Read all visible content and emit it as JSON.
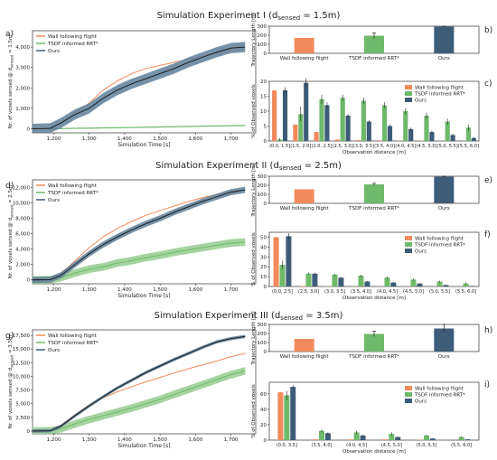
{
  "colors": {
    "wall": "#F28A5B",
    "tsdf": "#6EB96A",
    "ours": "#3D5C78",
    "ours_band": "#5E7F99",
    "tsdf_band": "#95CD8E"
  },
  "experiments": [
    {
      "title": "Simulation Experiment I (d",
      "title_sub": "sensed",
      "title_tail": " = 1.5m)",
      "panel_labels": [
        "a)",
        "b)",
        "c)"
      ],
      "ylabel_prefix": "Nr. of voxels sensed @ d",
      "ylabel_sub": "sensed",
      "ylabel_tail": " = 1.5m"
    },
    {
      "title": "Simulation Experiment II (d",
      "title_sub": "sensed",
      "title_tail": " = 2.5m)",
      "panel_labels": [
        "d)",
        "e)",
        "f)"
      ],
      "ylabel_prefix": "Nr. of voxels sensed @ d",
      "ylabel_sub": "sensed",
      "ylabel_tail": " = 2.5m"
    },
    {
      "title": "Simulation Experiment III (d",
      "title_sub": "sensed",
      "title_tail": " = 3.5m)",
      "panel_labels": [
        "g)",
        "h)",
        "i)"
      ],
      "ylabel_prefix": "Nr. of voxels sensed @ d",
      "ylabel_sub": "sensed",
      "ylabel_tail": " = 3.5m"
    }
  ],
  "legend": [
    "Wall following flight",
    "TSDF informed RRT*",
    "Ours"
  ],
  "chart_data": [
    {
      "id": "a",
      "type": "line",
      "xlabel": "Simulation Time [s]",
      "ylabel": "Nr. of voxels sensed @ d sensed = 1.5m",
      "xlim": [
        1140,
        1770
      ],
      "ylim": [
        -200,
        4800
      ],
      "xticks": [
        1200,
        1300,
        1400,
        1500,
        1600,
        1700
      ],
      "xtick_labels": [
        "1,200",
        "1,300",
        "1,400",
        "1,500",
        "1,600",
        "1,700"
      ],
      "yticks": [
        0,
        1000,
        2000,
        3000,
        4000
      ],
      "ytick_labels": [
        "0",
        "1,000",
        "2,000",
        "3,000",
        "4,000"
      ],
      "legend_loc": "top-left",
      "series": [
        {
          "name": "Wall following flight",
          "x": [
            1140,
            1190,
            1220,
            1260,
            1300,
            1340,
            1380,
            1420,
            1460,
            1500,
            1540,
            1580,
            1620,
            1660,
            1700,
            1740
          ],
          "y": [
            0,
            20,
            300,
            800,
            1250,
            1900,
            2350,
            2700,
            2950,
            3100,
            3250,
            3400,
            3550,
            3700,
            3850,
            3900
          ]
        },
        {
          "name": "TSDF informed RRT*",
          "x": [
            1140,
            1200,
            1300,
            1400,
            1500,
            1600,
            1700,
            1740
          ],
          "y": [
            0,
            5,
            30,
            60,
            90,
            120,
            150,
            160
          ],
          "band": 30
        },
        {
          "name": "Ours",
          "x": [
            1140,
            1190,
            1220,
            1260,
            1300,
            1340,
            1380,
            1420,
            1460,
            1500,
            1540,
            1580,
            1620,
            1660,
            1700,
            1740
          ],
          "y": [
            0,
            20,
            280,
            700,
            1000,
            1500,
            1900,
            2200,
            2450,
            2700,
            2950,
            3250,
            3500,
            3750,
            3950,
            4000
          ],
          "band": 250
        }
      ]
    },
    {
      "id": "b",
      "type": "bar",
      "ylabel": "Trajectory Length [m]",
      "ylim": [
        0,
        300
      ],
      "yticks": [
        0,
        100,
        200,
        300
      ],
      "categories": [
        "Wall following flight",
        "TSDF informed RRT*",
        "Ours"
      ],
      "values": [
        170,
        195,
        295
      ],
      "errors": [
        0,
        30,
        5
      ]
    },
    {
      "id": "c",
      "type": "bar",
      "ylabel": "% of Observed voxels",
      "xlabel": "Observation distance [m]",
      "ylim": [
        0,
        20
      ],
      "yticks": [
        0,
        5,
        10,
        15,
        20
      ],
      "categories": [
        "(0.0, 1.5]",
        "(1.5, 2.0]",
        "(2.0, 2.5]",
        "(2.5, 3.0]",
        "(3.0, 3.5]",
        "(3.5, 4.0]",
        "(4.0, 4.5]",
        "(4.5, 5.0]",
        "(5.0, 5.5]",
        "(5.5, 6.0]"
      ],
      "series": [
        {
          "name": "Wall following flight",
          "values": [
            17,
            5.5,
            3,
            0.5,
            0.3,
            0.2,
            0.1,
            0.1,
            0,
            0
          ],
          "errors": [
            0,
            0,
            0,
            0,
            0,
            0,
            0,
            0,
            0,
            0
          ]
        },
        {
          "name": "TSDF informed RRT*",
          "values": [
            0.5,
            9,
            14,
            14.5,
            13.5,
            12,
            10,
            8.5,
            6.5,
            4.5
          ],
          "errors": [
            0.5,
            2.5,
            1.5,
            1,
            1,
            1,
            1,
            1,
            1,
            1
          ]
        },
        {
          "name": "Ours",
          "values": [
            17,
            19.5,
            12,
            8.5,
            6.5,
            5,
            4,
            3,
            2,
            1
          ],
          "errors": [
            1,
            1.5,
            1,
            0.5,
            0.5,
            0.5,
            0.5,
            0.5,
            0.5,
            0.3
          ]
        }
      ],
      "legend_loc": "top-right"
    },
    {
      "id": "d",
      "type": "line",
      "xlabel": "Simulation Time [s]",
      "ylabel": "Nr. of voxels sensed @ d sensed = 2.5m",
      "xlim": [
        1140,
        1770
      ],
      "ylim": [
        -500,
        13000
      ],
      "xticks": [
        1200,
        1300,
        1400,
        1500,
        1600,
        1700
      ],
      "xtick_labels": [
        "1,200",
        "1,300",
        "1,400",
        "1,500",
        "1,600",
        "1,700"
      ],
      "yticks": [
        0,
        2000,
        4000,
        6000,
        8000,
        10000,
        12000
      ],
      "ytick_labels": [
        "0",
        "2,000",
        "4,000",
        "6,000",
        "8,000",
        "10,000",
        "12,000"
      ],
      "legend_loc": "top-left",
      "series": [
        {
          "name": "Wall following flight",
          "x": [
            1140,
            1190,
            1220,
            1260,
            1300,
            1340,
            1380,
            1420,
            1460,
            1500,
            1540,
            1580,
            1620,
            1660,
            1700,
            1740
          ],
          "y": [
            0,
            50,
            800,
            2500,
            4200,
            5600,
            6700,
            7600,
            8400,
            9000,
            9600,
            10200,
            10700,
            11100,
            11500,
            11700
          ]
        },
        {
          "name": "TSDF informed RRT*",
          "x": [
            1140,
            1190,
            1220,
            1260,
            1300,
            1340,
            1380,
            1420,
            1460,
            1500,
            1540,
            1580,
            1620,
            1660,
            1700,
            1740
          ],
          "y": [
            0,
            30,
            300,
            900,
            1400,
            1700,
            2200,
            2500,
            2900,
            3200,
            3600,
            3900,
            4200,
            4500,
            4800,
            4900
          ],
          "band": 500
        },
        {
          "name": "Ours",
          "x": [
            1140,
            1190,
            1220,
            1260,
            1300,
            1340,
            1380,
            1420,
            1460,
            1500,
            1540,
            1580,
            1620,
            1660,
            1700,
            1740
          ],
          "y": [
            0,
            40,
            600,
            2000,
            3400,
            4600,
            5600,
            6500,
            7300,
            8000,
            8800,
            9500,
            10200,
            10800,
            11400,
            11700
          ],
          "band": 400
        }
      ]
    },
    {
      "id": "e",
      "type": "bar",
      "ylabel": "Trajectory Length [m]",
      "ylim": [
        0,
        300
      ],
      "yticks": [
        0,
        100,
        200,
        300
      ],
      "categories": [
        "Wall following flight",
        "TSDF informed RRT*",
        "Ours"
      ],
      "values": [
        155,
        210,
        295
      ],
      "errors": [
        0,
        12,
        5
      ]
    },
    {
      "id": "f",
      "type": "bar",
      "ylabel": "% of Observed voxels",
      "xlabel": "Observation distance [m]",
      "ylim": [
        0,
        55
      ],
      "yticks": [
        0,
        10,
        20,
        30,
        40,
        50
      ],
      "categories": [
        "(0.0, 2.5]",
        "(2.5, 3.0]",
        "(3.0, 3.5]",
        "(3.5, 4.0]",
        "(4.0, 4.5]",
        "(4.5, 5.0]",
        "(5.0, 5.5]",
        "(5.5, 6.0]"
      ],
      "series": [
        {
          "name": "Wall following flight",
          "values": [
            50,
            0.5,
            0.3,
            0.2,
            0.2,
            0.1,
            0,
            0
          ],
          "errors": [
            0,
            0,
            0,
            0,
            0,
            0,
            0,
            0
          ]
        },
        {
          "name": "TSDF informed RRT*",
          "values": [
            22,
            13,
            12,
            11,
            9,
            7,
            5,
            3
          ],
          "errors": [
            4,
            1,
            1,
            1,
            1,
            1,
            1,
            1
          ]
        },
        {
          "name": "Ours",
          "values": [
            51,
            13,
            9,
            5,
            4,
            3,
            1.5,
            0.5
          ],
          "errors": [
            3,
            1,
            0.5,
            0.5,
            0.5,
            0.3,
            0.3,
            0.2
          ]
        }
      ],
      "legend_loc": "top-right"
    },
    {
      "id": "g",
      "type": "line",
      "xlabel": "Simulation Time [s]",
      "ylabel": "Nr. of voxels sensed @ d sensed = 3.5m",
      "xlim": [
        1140,
        1770
      ],
      "ylim": [
        -500,
        18500
      ],
      "xticks": [
        1200,
        1300,
        1400,
        1500,
        1600,
        1700
      ],
      "xtick_labels": [
        "1,200",
        "1,300",
        "1,400",
        "1,500",
        "1,600",
        "1,700"
      ],
      "yticks": [
        0,
        2500,
        5000,
        7500,
        10000,
        12500,
        15000,
        17500
      ],
      "ytick_labels": [
        "0",
        "2,500",
        "5,000",
        "7,500",
        "10,000",
        "12,500",
        "15,000",
        "17,500"
      ],
      "legend_loc": "top-left",
      "series": [
        {
          "name": "Wall following flight",
          "x": [
            1140,
            1190,
            1220,
            1260,
            1300,
            1340,
            1380,
            1420,
            1460,
            1500,
            1540,
            1580,
            1620,
            1660,
            1700,
            1740
          ],
          "y": [
            0,
            50,
            1000,
            3000,
            4800,
            6100,
            7200,
            8100,
            9000,
            9800,
            10600,
            11400,
            12100,
            12800,
            13600,
            14200
          ]
        },
        {
          "name": "TSDF informed RRT*",
          "x": [
            1140,
            1190,
            1220,
            1260,
            1300,
            1340,
            1380,
            1420,
            1460,
            1500,
            1540,
            1580,
            1620,
            1660,
            1700,
            1740
          ],
          "y": [
            0,
            30,
            400,
            1300,
            2100,
            2800,
            3500,
            4200,
            5000,
            5800,
            6700,
            7600,
            8500,
            9400,
            10300,
            11000
          ],
          "band": 700
        },
        {
          "name": "Ours",
          "x": [
            1140,
            1190,
            1220,
            1260,
            1300,
            1340,
            1380,
            1420,
            1460,
            1500,
            1540,
            1580,
            1620,
            1660,
            1700,
            1740
          ],
          "y": [
            0,
            40,
            900,
            2800,
            4600,
            6300,
            7900,
            9300,
            10700,
            11900,
            13100,
            14200,
            15300,
            16300,
            16900,
            17300
          ],
          "band": 300
        }
      ]
    },
    {
      "id": "h",
      "type": "bar",
      "ylabel": "Trajectory Length [m]",
      "ylim": [
        0,
        300
      ],
      "yticks": [
        0,
        100,
        200,
        300
      ],
      "categories": [
        "Wall following flight",
        "TSDF informed RRT*",
        "Ours"
      ],
      "values": [
        140,
        195,
        255
      ],
      "errors": [
        0,
        30,
        45
      ]
    },
    {
      "id": "i",
      "type": "bar",
      "ylabel": "% of Observed voxels",
      "xlabel": "Observation distance [m]",
      "ylim": [
        0,
        75
      ],
      "yticks": [
        0,
        20,
        40,
        60
      ],
      "categories": [
        "(0.0, 3.5]",
        "(3.5, 4.0]",
        "(4.0, 4.5]",
        "(4.5, 5.0]",
        "(5.0, 5.5]",
        "(5.5, 6.0]"
      ],
      "series": [
        {
          "name": "Wall following flight",
          "values": [
            62,
            1,
            1,
            1,
            0.5,
            0
          ],
          "errors": [
            0,
            0,
            0,
            0,
            0,
            0
          ]
        },
        {
          "name": "TSDF informed RRT*",
          "values": [
            58,
            12,
            10,
            8,
            6,
            4
          ],
          "errors": [
            6,
            2,
            2,
            2,
            1,
            1
          ]
        },
        {
          "name": "Ours",
          "values": [
            69,
            9,
            6,
            4,
            2,
            1
          ],
          "errors": [
            2,
            1,
            1,
            0.5,
            0.5,
            0.3
          ]
        }
      ],
      "legend_loc": "top-right"
    }
  ]
}
